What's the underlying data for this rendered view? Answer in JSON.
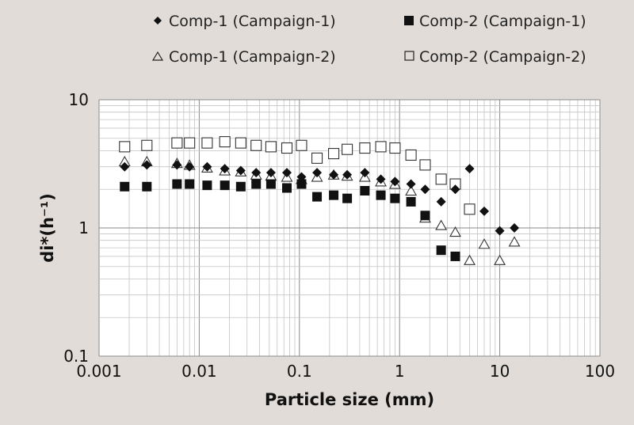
{
  "chart_data": {
    "type": "scatter",
    "title": "",
    "xlabel": "Particle size (mm)",
    "ylabel": "di*(h⁻¹)",
    "x_scale": "log",
    "y_scale": "log",
    "xlim": [
      0.001,
      100
    ],
    "ylim": [
      0.1,
      10
    ],
    "x_ticks": [
      "0.001",
      "0.01",
      "0.1",
      "1",
      "10",
      "100"
    ],
    "y_ticks": [
      "0.1",
      "1",
      "10"
    ],
    "grid": true,
    "legend_position": "top",
    "series": [
      {
        "name": "Comp-1 (Campaign-1)",
        "marker": "diamond-filled",
        "points": [
          [
            0.0018,
            3.0
          ],
          [
            0.003,
            3.1
          ],
          [
            0.006,
            3.1
          ],
          [
            0.008,
            3.0
          ],
          [
            0.012,
            3.0
          ],
          [
            0.018,
            2.9
          ],
          [
            0.026,
            2.8
          ],
          [
            0.037,
            2.7
          ],
          [
            0.052,
            2.7
          ],
          [
            0.075,
            2.7
          ],
          [
            0.105,
            2.5
          ],
          [
            0.15,
            2.7
          ],
          [
            0.22,
            2.6
          ],
          [
            0.3,
            2.6
          ],
          [
            0.45,
            2.7
          ],
          [
            0.65,
            2.4
          ],
          [
            0.9,
            2.3
          ],
          [
            1.3,
            2.2
          ],
          [
            1.8,
            2.0
          ],
          [
            2.6,
            1.6
          ],
          [
            3.6,
            2.0
          ],
          [
            5.0,
            2.9
          ],
          [
            7.0,
            1.35
          ],
          [
            10.0,
            0.95
          ],
          [
            14.0,
            1.0
          ]
        ]
      },
      {
        "name": "Comp-2 (Campaign-1)",
        "marker": "square-filled",
        "points": [
          [
            0.0018,
            2.1
          ],
          [
            0.003,
            2.1
          ],
          [
            0.006,
            2.2
          ],
          [
            0.008,
            2.2
          ],
          [
            0.012,
            2.15
          ],
          [
            0.018,
            2.15
          ],
          [
            0.026,
            2.1
          ],
          [
            0.037,
            2.2
          ],
          [
            0.052,
            2.2
          ],
          [
            0.075,
            2.05
          ],
          [
            0.105,
            2.2
          ],
          [
            0.15,
            1.75
          ],
          [
            0.22,
            1.8
          ],
          [
            0.3,
            1.7
          ],
          [
            0.45,
            1.95
          ],
          [
            0.65,
            1.8
          ],
          [
            0.9,
            1.7
          ],
          [
            1.3,
            1.6
          ],
          [
            1.8,
            1.25
          ],
          [
            2.6,
            0.67
          ],
          [
            3.6,
            0.6
          ]
        ]
      },
      {
        "name": "Comp-1 (Campaign-2)",
        "marker": "triangle-open",
        "points": [
          [
            0.0018,
            3.3
          ],
          [
            0.003,
            3.3
          ],
          [
            0.006,
            3.2
          ],
          [
            0.008,
            3.1
          ],
          [
            0.012,
            2.95
          ],
          [
            0.018,
            2.8
          ],
          [
            0.026,
            2.75
          ],
          [
            0.037,
            2.6
          ],
          [
            0.052,
            2.55
          ],
          [
            0.075,
            2.5
          ],
          [
            0.105,
            2.4
          ],
          [
            0.15,
            2.5
          ],
          [
            0.22,
            2.6
          ],
          [
            0.3,
            2.55
          ],
          [
            0.45,
            2.5
          ],
          [
            0.65,
            2.3
          ],
          [
            0.9,
            2.2
          ],
          [
            1.3,
            1.95
          ],
          [
            1.8,
            1.2
          ],
          [
            2.6,
            1.05
          ],
          [
            3.6,
            0.93
          ],
          [
            5.0,
            0.56
          ],
          [
            7.0,
            0.75
          ],
          [
            10.0,
            0.56
          ],
          [
            14.0,
            0.78
          ]
        ]
      },
      {
        "name": "Comp-2 (Campaign-2)",
        "marker": "square-open",
        "points": [
          [
            0.0018,
            4.3
          ],
          [
            0.003,
            4.4
          ],
          [
            0.006,
            4.6
          ],
          [
            0.008,
            4.6
          ],
          [
            0.012,
            4.6
          ],
          [
            0.018,
            4.7
          ],
          [
            0.026,
            4.6
          ],
          [
            0.037,
            4.4
          ],
          [
            0.052,
            4.3
          ],
          [
            0.075,
            4.2
          ],
          [
            0.105,
            4.4
          ],
          [
            0.15,
            3.5
          ],
          [
            0.22,
            3.8
          ],
          [
            0.3,
            4.1
          ],
          [
            0.45,
            4.2
          ],
          [
            0.65,
            4.3
          ],
          [
            0.9,
            4.2
          ],
          [
            1.3,
            3.7
          ],
          [
            1.8,
            3.1
          ],
          [
            2.6,
            2.4
          ],
          [
            3.6,
            2.2
          ],
          [
            5.0,
            1.4
          ]
        ]
      }
    ]
  }
}
